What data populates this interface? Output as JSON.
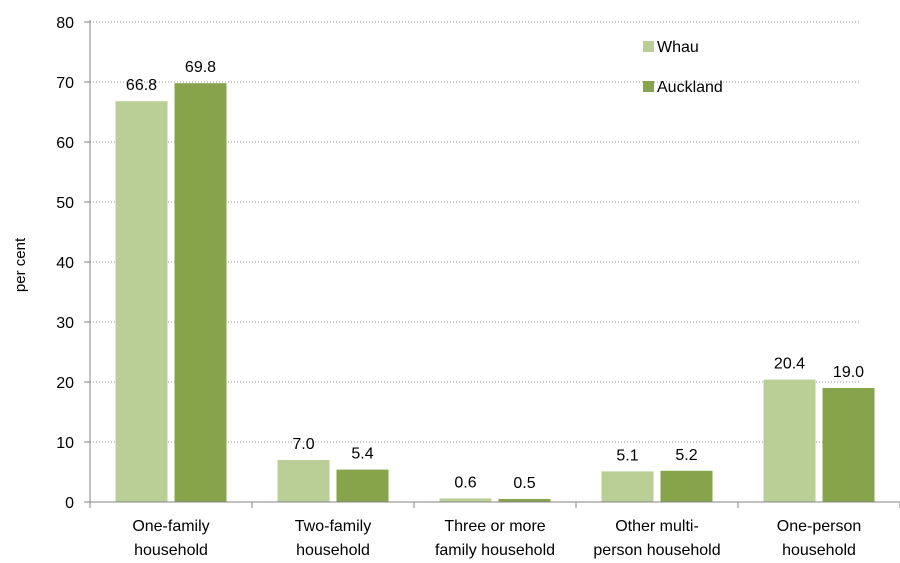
{
  "chart_data": {
    "type": "bar",
    "title": "",
    "xlabel": "",
    "ylabel": "per cent",
    "ylim": [
      0,
      80
    ],
    "yticks": [
      0,
      10,
      20,
      30,
      40,
      50,
      60,
      70,
      80
    ],
    "grid": true,
    "legend_position": "top-right",
    "categories": [
      [
        "One-family",
        "household"
      ],
      [
        "Two-family",
        "household"
      ],
      [
        "Three or more",
        "family household"
      ],
      [
        "Other multi-",
        "person household"
      ],
      [
        "One-person",
        "household"
      ]
    ],
    "series": [
      {
        "name": "Whau",
        "color": "#b9cf95",
        "values": [
          66.8,
          7.0,
          0.6,
          5.1,
          20.4
        ],
        "labels": [
          "66.8",
          "7.0",
          "0.6",
          "5.1",
          "20.4"
        ]
      },
      {
        "name": "Auckland",
        "color": "#86a44a",
        "values": [
          69.8,
          5.4,
          0.5,
          5.2,
          19.0
        ],
        "labels": [
          "69.8",
          "5.4",
          "0.5",
          "5.2",
          "19.0"
        ]
      }
    ]
  }
}
